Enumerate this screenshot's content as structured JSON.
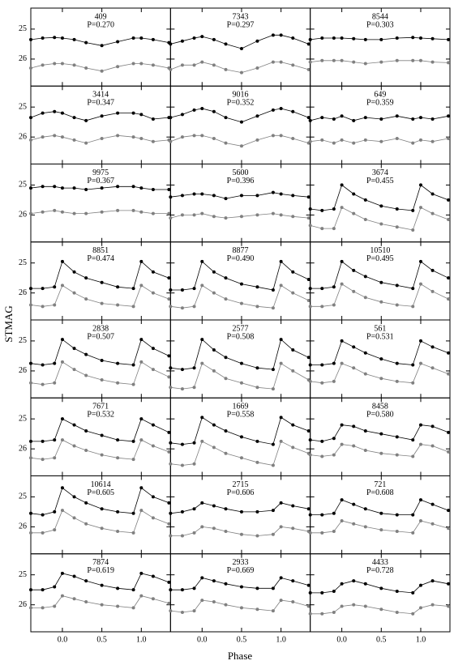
{
  "axes": {
    "xlabel": "Phase",
    "ylabel": "STMAG",
    "x": [
      -0.4,
      -0.25,
      -0.1,
      0,
      0.15,
      0.3,
      0.5,
      0.7,
      0.9,
      1,
      1.15,
      1.35
    ],
    "xlim": [
      -0.4,
      1.37
    ],
    "xticks": [
      {
        "value": 0,
        "label": "0.0"
      },
      0.5,
      {
        "value": 1,
        "label": "1.0"
      }
    ],
    "ylim": [
      24.3,
      26.9
    ],
    "yticks": [
      25,
      26
    ],
    "invert_y": true
  },
  "chart_data": [
    {
      "type": "scatter",
      "title": "409",
      "subtitle": "P=0.270",
      "series": [
        {
          "color": "#000000",
          "values": [
            25.35,
            25.3,
            25.28,
            25.3,
            25.35,
            25.45,
            25.55,
            25.42,
            25.3,
            25.3,
            25.35,
            25.45
          ]
        },
        {
          "color": "#808080",
          "values": [
            26.3,
            26.2,
            26.15,
            26.15,
            26.2,
            26.3,
            26.4,
            26.25,
            26.15,
            26.15,
            26.2,
            26.3
          ]
        }
      ]
    },
    {
      "type": "scatter",
      "title": "7343",
      "subtitle": "P=0.297",
      "series": [
        {
          "color": "#000000",
          "values": [
            25.5,
            25.4,
            25.3,
            25.25,
            25.35,
            25.5,
            25.65,
            25.4,
            25.2,
            25.2,
            25.3,
            25.5
          ]
        },
        {
          "color": "#808080",
          "values": [
            26.35,
            26.2,
            26.2,
            26.1,
            26.2,
            26.35,
            26.45,
            26.3,
            26.1,
            26.1,
            26.2,
            26.35
          ]
        }
      ]
    },
    {
      "type": "scatter",
      "title": "8544",
      "subtitle": "P=0.303",
      "series": [
        {
          "color": "#000000",
          "values": [
            25.35,
            25.3,
            25.3,
            25.3,
            25.32,
            25.35,
            25.35,
            25.3,
            25.28,
            25.3,
            25.32,
            25.35
          ]
        },
        {
          "color": "#808080",
          "values": [
            26.1,
            26.05,
            26.05,
            26.05,
            26.1,
            26.15,
            26.1,
            26.05,
            26.05,
            26.05,
            26.1,
            26.12
          ]
        }
      ]
    },
    {
      "type": "scatter",
      "title": "3414",
      "subtitle": "P=0.347",
      "series": [
        {
          "color": "#000000",
          "values": [
            25.35,
            25.2,
            25.15,
            25.2,
            25.35,
            25.45,
            25.3,
            25.2,
            25.2,
            25.25,
            25.4,
            25.35
          ]
        },
        {
          "color": "#808080",
          "values": [
            26.1,
            26.0,
            25.95,
            26.0,
            26.1,
            26.2,
            26.05,
            25.95,
            26.0,
            26.05,
            26.15,
            26.1
          ]
        }
      ]
    },
    {
      "type": "scatter",
      "title": "9016",
      "subtitle": "P=0.352",
      "series": [
        {
          "color": "#000000",
          "values": [
            25.35,
            25.25,
            25.1,
            25.05,
            25.15,
            25.35,
            25.5,
            25.3,
            25.1,
            25.05,
            25.15,
            25.35
          ]
        },
        {
          "color": "#808080",
          "values": [
            26.15,
            26.0,
            25.95,
            25.95,
            26.05,
            26.2,
            26.3,
            26.1,
            25.95,
            25.95,
            26.05,
            26.2
          ]
        }
      ]
    },
    {
      "type": "scatter",
      "title": "649",
      "subtitle": "P=0.359",
      "series": [
        {
          "color": "#000000",
          "values": [
            25.45,
            25.35,
            25.4,
            25.3,
            25.45,
            25.35,
            25.4,
            25.3,
            25.4,
            25.35,
            25.4,
            25.3
          ]
        },
        {
          "color": "#808080",
          "values": [
            26.15,
            26.1,
            26.2,
            26.1,
            26.2,
            26.1,
            26.15,
            26.05,
            26.2,
            26.1,
            26.15,
            26.05
          ]
        }
      ]
    },
    {
      "type": "scatter",
      "title": "9975",
      "subtitle": "P=0.367",
      "series": [
        {
          "color": "#000000",
          "values": [
            25.1,
            25.05,
            25.05,
            25.1,
            25.1,
            25.15,
            25.1,
            25.05,
            25.05,
            25.1,
            25.15,
            25.15
          ]
        },
        {
          "color": "#808080",
          "values": [
            25.95,
            25.9,
            25.85,
            25.9,
            25.95,
            25.95,
            25.9,
            25.85,
            25.85,
            25.9,
            25.95,
            25.95
          ]
        }
      ]
    },
    {
      "type": "scatter",
      "title": "5600",
      "subtitle": "P=0.396",
      "series": [
        {
          "color": "#000000",
          "values": [
            25.4,
            25.35,
            25.3,
            25.3,
            25.35,
            25.45,
            25.35,
            25.35,
            25.25,
            25.3,
            25.35,
            25.4
          ]
        },
        {
          "color": "#808080",
          "values": [
            26.1,
            26.0,
            26.0,
            25.95,
            26.05,
            26.1,
            26.05,
            26.0,
            25.95,
            26.0,
            26.05,
            26.1
          ]
        }
      ]
    },
    {
      "type": "scatter",
      "title": "3674",
      "subtitle": "P=0.455",
      "series": [
        {
          "color": "#000000",
          "values": [
            25.8,
            25.85,
            25.8,
            25.0,
            25.3,
            25.5,
            25.7,
            25.8,
            25.85,
            25.0,
            25.3,
            25.5
          ]
        },
        {
          "color": "#808080",
          "values": [
            26.35,
            26.45,
            26.45,
            25.75,
            25.95,
            26.15,
            26.3,
            26.4,
            26.5,
            25.75,
            25.95,
            26.15
          ]
        }
      ]
    },
    {
      "type": "scatter",
      "title": "8851",
      "subtitle": "P=0.474",
      "series": [
        {
          "color": "#000000",
          "values": [
            25.85,
            25.85,
            25.8,
            24.95,
            25.3,
            25.5,
            25.65,
            25.8,
            25.85,
            24.95,
            25.3,
            25.5
          ]
        },
        {
          "color": "#808080",
          "values": [
            26.4,
            26.45,
            26.4,
            25.75,
            26.0,
            26.2,
            26.35,
            26.4,
            26.45,
            25.75,
            26.0,
            26.2
          ]
        }
      ]
    },
    {
      "type": "scatter",
      "title": "8877",
      "subtitle": "P=0.490",
      "series": [
        {
          "color": "#000000",
          "values": [
            25.9,
            25.9,
            25.85,
            24.95,
            25.3,
            25.5,
            25.7,
            25.8,
            25.9,
            24.95,
            25.3,
            25.55
          ]
        },
        {
          "color": "#808080",
          "values": [
            26.45,
            26.5,
            26.45,
            25.75,
            26.0,
            26.2,
            26.35,
            26.45,
            26.5,
            25.75,
            26.0,
            26.25
          ]
        }
      ]
    },
    {
      "type": "scatter",
      "title": "10510",
      "subtitle": "P=0.495",
      "series": [
        {
          "color": "#000000",
          "values": [
            25.85,
            25.85,
            25.8,
            24.95,
            25.25,
            25.45,
            25.65,
            25.75,
            25.85,
            24.95,
            25.25,
            25.5
          ]
        },
        {
          "color": "#808080",
          "values": [
            26.45,
            26.45,
            26.4,
            25.7,
            25.95,
            26.15,
            26.3,
            26.4,
            26.45,
            25.7,
            25.95,
            26.2
          ]
        }
      ]
    },
    {
      "type": "scatter",
      "title": "2838",
      "subtitle": "P=0.507",
      "series": [
        {
          "color": "#000000",
          "values": [
            25.75,
            25.8,
            25.75,
            24.95,
            25.25,
            25.45,
            25.65,
            25.75,
            25.8,
            24.95,
            25.25,
            25.5
          ]
        },
        {
          "color": "#808080",
          "values": [
            26.4,
            26.45,
            26.4,
            25.7,
            25.95,
            26.15,
            26.3,
            26.4,
            26.45,
            25.7,
            25.95,
            26.2
          ]
        }
      ]
    },
    {
      "type": "scatter",
      "title": "2577",
      "subtitle": "P=0.508",
      "series": [
        {
          "color": "#000000",
          "values": [
            25.9,
            25.95,
            25.9,
            24.95,
            25.3,
            25.55,
            25.75,
            25.9,
            25.95,
            24.95,
            25.3,
            25.55
          ]
        },
        {
          "color": "#808080",
          "values": [
            26.55,
            26.6,
            26.55,
            25.75,
            26.0,
            26.25,
            26.4,
            26.55,
            26.6,
            25.75,
            26.0,
            26.3
          ]
        }
      ]
    },
    {
      "type": "scatter",
      "title": "561",
      "subtitle": "P=0.531",
      "series": [
        {
          "color": "#000000",
          "values": [
            25.8,
            25.8,
            25.75,
            25.0,
            25.2,
            25.4,
            25.6,
            25.75,
            25.8,
            25.0,
            25.2,
            25.4
          ]
        },
        {
          "color": "#808080",
          "values": [
            26.35,
            26.4,
            26.35,
            25.75,
            25.9,
            26.1,
            26.25,
            26.35,
            26.4,
            25.75,
            25.9,
            26.1
          ]
        }
      ]
    },
    {
      "type": "scatter",
      "title": "7671",
      "subtitle": "P=0.532",
      "series": [
        {
          "color": "#000000",
          "values": [
            25.75,
            25.75,
            25.7,
            25.0,
            25.2,
            25.4,
            25.55,
            25.7,
            25.75,
            25.0,
            25.2,
            25.45
          ]
        },
        {
          "color": "#808080",
          "values": [
            26.3,
            26.35,
            26.3,
            25.7,
            25.9,
            26.05,
            26.2,
            26.3,
            26.35,
            25.7,
            25.9,
            26.1
          ]
        }
      ]
    },
    {
      "type": "scatter",
      "title": "1669",
      "subtitle": "P=0.558",
      "series": [
        {
          "color": "#000000",
          "values": [
            25.8,
            25.85,
            25.8,
            24.95,
            25.2,
            25.4,
            25.6,
            25.75,
            25.85,
            24.95,
            25.2,
            25.4
          ]
        },
        {
          "color": "#808080",
          "values": [
            26.5,
            26.55,
            26.5,
            25.75,
            25.95,
            26.15,
            26.3,
            26.45,
            26.55,
            25.75,
            25.95,
            26.15
          ]
        }
      ]
    },
    {
      "type": "scatter",
      "title": "8458",
      "subtitle": "P=0.580",
      "series": [
        {
          "color": "#000000",
          "values": [
            25.7,
            25.75,
            25.65,
            25.2,
            25.25,
            25.4,
            25.5,
            25.6,
            25.7,
            25.2,
            25.25,
            25.45
          ]
        },
        {
          "color": "#808080",
          "values": [
            26.2,
            26.25,
            26.2,
            25.85,
            25.9,
            26.05,
            26.15,
            26.2,
            26.25,
            25.85,
            25.9,
            26.1
          ]
        }
      ]
    },
    {
      "type": "scatter",
      "title": "10614",
      "subtitle": "P=0.605",
      "series": [
        {
          "color": "#000000",
          "values": [
            25.55,
            25.6,
            25.5,
            24.7,
            25.0,
            25.2,
            25.4,
            25.5,
            25.55,
            24.7,
            25.0,
            25.2
          ]
        },
        {
          "color": "#808080",
          "values": [
            26.2,
            26.2,
            26.1,
            25.45,
            25.7,
            25.9,
            26.05,
            26.15,
            26.2,
            25.45,
            25.7,
            25.9
          ]
        }
      ]
    },
    {
      "type": "scatter",
      "title": "2715",
      "subtitle": "P=0.606",
      "series": [
        {
          "color": "#000000",
          "values": [
            25.55,
            25.5,
            25.4,
            25.2,
            25.3,
            25.4,
            25.5,
            25.5,
            25.45,
            25.2,
            25.3,
            25.4
          ]
        },
        {
          "color": "#808080",
          "values": [
            26.3,
            26.3,
            26.2,
            26.0,
            26.05,
            26.15,
            26.25,
            26.3,
            26.25,
            26.0,
            26.05,
            26.15
          ]
        }
      ]
    },
    {
      "type": "scatter",
      "title": "721",
      "subtitle": "P=0.608",
      "series": [
        {
          "color": "#000000",
          "values": [
            25.6,
            25.6,
            25.55,
            25.1,
            25.25,
            25.4,
            25.55,
            25.6,
            25.6,
            25.1,
            25.25,
            25.45
          ]
        },
        {
          "color": "#808080",
          "values": [
            26.2,
            26.2,
            26.15,
            25.8,
            25.9,
            26.0,
            26.1,
            26.15,
            26.2,
            25.8,
            25.9,
            26.05
          ]
        }
      ]
    },
    {
      "type": "scatter",
      "title": "7874",
      "subtitle": "P=0.619",
      "series": [
        {
          "color": "#000000",
          "values": [
            25.5,
            25.5,
            25.4,
            24.95,
            25.05,
            25.2,
            25.35,
            25.45,
            25.5,
            24.95,
            25.05,
            25.25
          ]
        },
        {
          "color": "#808080",
          "values": [
            26.1,
            26.1,
            26.05,
            25.7,
            25.8,
            25.9,
            26.0,
            26.05,
            26.1,
            25.7,
            25.8,
            25.95
          ]
        }
      ]
    },
    {
      "type": "scatter",
      "title": "2933",
      "subtitle": "P=0.669",
      "series": [
        {
          "color": "#000000",
          "values": [
            25.5,
            25.5,
            25.45,
            25.1,
            25.2,
            25.3,
            25.4,
            25.45,
            25.45,
            25.1,
            25.2,
            25.35
          ]
        },
        {
          "color": "#808080",
          "values": [
            26.2,
            26.25,
            26.2,
            25.85,
            25.9,
            26.0,
            26.1,
            26.15,
            26.2,
            25.85,
            25.9,
            26.05
          ]
        }
      ]
    },
    {
      "type": "scatter",
      "title": "4433",
      "subtitle": "P=0.728",
      "series": [
        {
          "color": "#000000",
          "values": [
            25.6,
            25.6,
            25.55,
            25.3,
            25.2,
            25.3,
            25.45,
            25.55,
            25.6,
            25.35,
            25.2,
            25.3
          ]
        },
        {
          "color": "#808080",
          "values": [
            26.3,
            26.3,
            26.25,
            26.05,
            26.0,
            26.05,
            26.15,
            26.25,
            26.3,
            26.1,
            26.0,
            26.05
          ]
        }
      ]
    }
  ]
}
